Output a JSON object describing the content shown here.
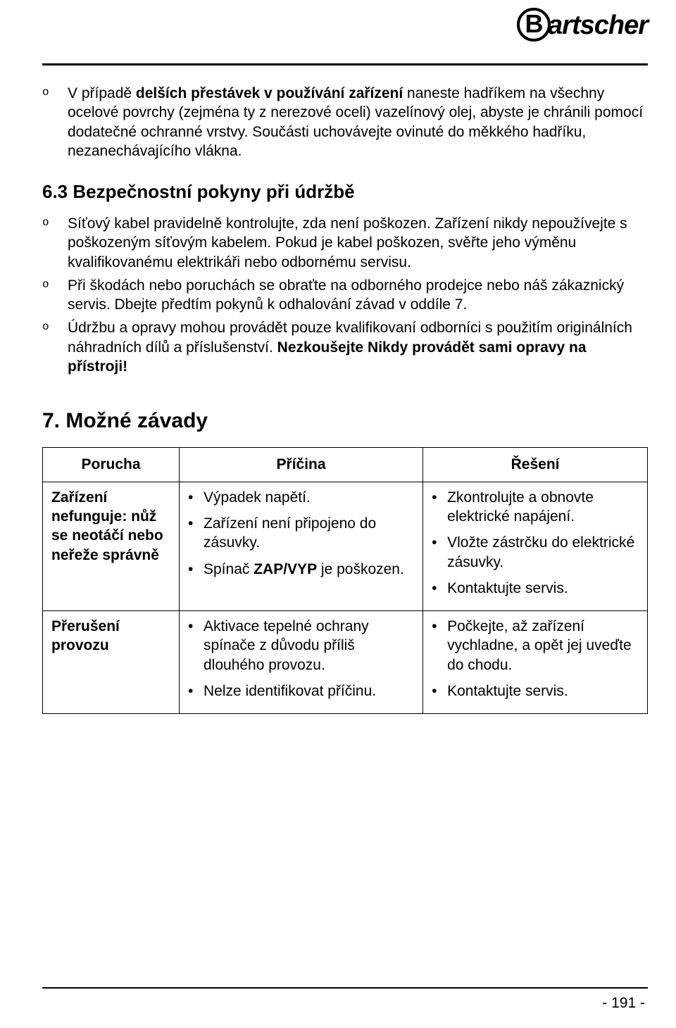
{
  "brand": "artscher",
  "brand_initial": "B",
  "intro_bullets": [
    "V případě <b>delších přestávek v používání zařízení</b> naneste hadříkem na všechny ocelové povrchy (zejména ty z nerezové oceli) vazelínový olej, abyste je chránili pomocí dodatečné ochranné vrstvy. Součásti uchovávejte ovinuté do měkkého hadříku, nezanechávajícího vlákna."
  ],
  "section63_title": "6.3 Bezpečnostní pokyny při údržbě",
  "section63_bullets": [
    "Síťový kabel pravidelně kontrolujte, zda není poškozen. Zařízení nikdy nepoužívejte s poškozeným síťovým kabelem. Pokud je kabel poškozen, svěřte jeho výměnu kvalifikovanému elektrikáři nebo odbornému servisu.",
    "Při škodách nebo poruchách se obraťte na odborného prodejce nebo náš zákaznický servis. Dbejte předtím pokynů k odhalování závad v oddíle 7.",
    "Údržbu a opravy mohou provádět pouze kvalifikovaní odborníci s použitím originálních náhradních dílů a příslušenství. <b>Nezkoušejte Nikdy provádět sami opravy na přístroji!</b>"
  ],
  "section7_title": "7. Možné závady",
  "table": {
    "headers": [
      "Porucha",
      "Příčina",
      "Řešení"
    ],
    "rows": [
      {
        "label": "Zařízení nefunguje: nůž se neotáčí nebo neřeže správně",
        "causes": [
          "Výpadek napětí.",
          "Zařízení není připojeno do zásuvky.",
          "Spínač <b>ZAP/VYP</b> je poškozen."
        ],
        "solutions": [
          "Zkontrolujte a obnovte elektrické napájení.",
          "Vložte zástrčku do elektrické zásuvky.",
          "Kontaktujte servis."
        ]
      },
      {
        "label": "Přerušení provozu",
        "causes": [
          "Aktivace tepelné ochrany spínače z důvodu příliš dlouhého provozu.",
          "Nelze identifikovat příčinu."
        ],
        "solutions": [
          "Počkejte, až zařízení vychladne, a opět jej uveďte do chodu.",
          "Kontaktujte servis."
        ]
      }
    ]
  },
  "page_number": "- 191 -",
  "colors": {
    "text": "#000000",
    "background": "#ffffff",
    "rule": "#000000",
    "table_border": "#000000"
  },
  "typography": {
    "body_fontsize": 21,
    "heading_fontsize": 26,
    "big_heading_fontsize": 30
  }
}
